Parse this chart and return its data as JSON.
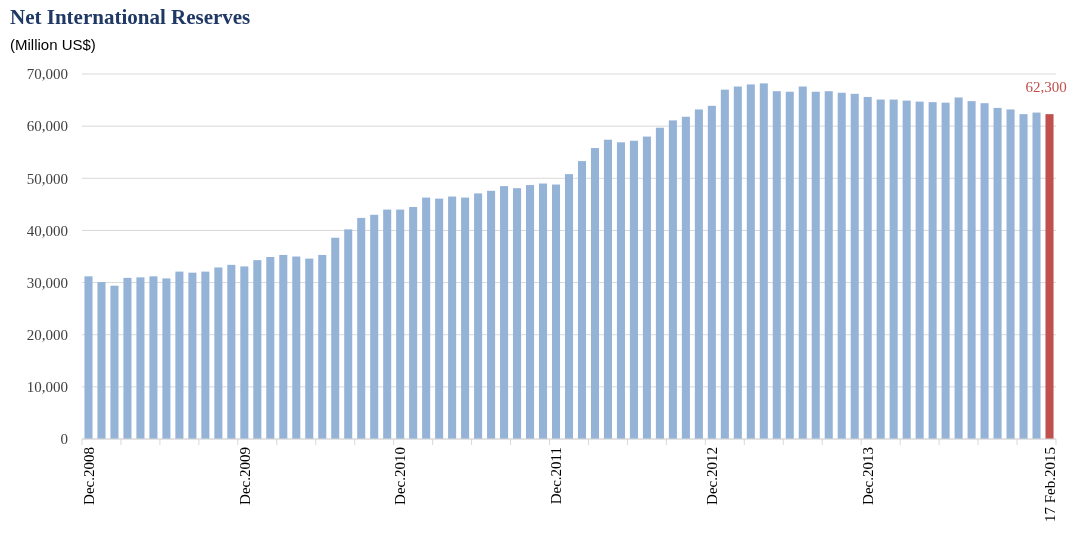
{
  "chart_data": {
    "type": "bar",
    "title": "Net International Reserves",
    "subtitle": "(Million US$)",
    "categories": [
      "Dec.2008",
      null,
      null,
      null,
      null,
      null,
      null,
      null,
      null,
      null,
      null,
      null,
      "Dec.2009",
      null,
      null,
      null,
      null,
      null,
      null,
      null,
      null,
      null,
      null,
      null,
      "Dec.2010",
      null,
      null,
      null,
      null,
      null,
      null,
      null,
      null,
      null,
      null,
      null,
      "Dec.2011",
      null,
      null,
      null,
      null,
      null,
      null,
      null,
      null,
      null,
      null,
      null,
      "Dec.2012",
      null,
      null,
      null,
      null,
      null,
      null,
      null,
      null,
      null,
      null,
      null,
      "Dec.2013",
      null,
      null,
      null,
      null,
      null,
      null,
      null,
      null,
      null,
      null,
      null,
      null,
      null,
      "17 Feb.2015"
    ],
    "values": [
      31200,
      30100,
      29400,
      30900,
      31000,
      31200,
      30800,
      32100,
      31900,
      32100,
      32900,
      33400,
      33100,
      34300,
      34900,
      35300,
      35000,
      34600,
      35300,
      38600,
      40200,
      42400,
      43000,
      44000,
      44000,
      44500,
      46300,
      46100,
      46500,
      46300,
      47100,
      47600,
      48500,
      48100,
      48700,
      49000,
      48800,
      50800,
      53300,
      55800,
      57400,
      56900,
      57200,
      58000,
      59700,
      61100,
      61800,
      63200,
      63900,
      67000,
      67600,
      68000,
      68200,
      66700,
      66600,
      67600,
      66600,
      66700,
      66400,
      66200,
      65600,
      65100,
      65100,
      64900,
      64700,
      64600,
      64500,
      65500,
      64800,
      64400,
      63500,
      63200,
      62300,
      62600,
      62300
    ],
    "colors": [
      "#95b3d7",
      "#95b3d7",
      "#95b3d7",
      "#95b3d7",
      "#95b3d7",
      "#95b3d7",
      "#95b3d7",
      "#95b3d7",
      "#95b3d7",
      "#95b3d7",
      "#95b3d7",
      "#95b3d7",
      "#95b3d7",
      "#95b3d7",
      "#95b3d7",
      "#95b3d7",
      "#95b3d7",
      "#95b3d7",
      "#95b3d7",
      "#95b3d7",
      "#95b3d7",
      "#95b3d7",
      "#95b3d7",
      "#95b3d7",
      "#95b3d7",
      "#95b3d7",
      "#95b3d7",
      "#95b3d7",
      "#95b3d7",
      "#95b3d7",
      "#95b3d7",
      "#95b3d7",
      "#95b3d7",
      "#95b3d7",
      "#95b3d7",
      "#95b3d7",
      "#95b3d7",
      "#95b3d7",
      "#95b3d7",
      "#95b3d7",
      "#95b3d7",
      "#95b3d7",
      "#95b3d7",
      "#95b3d7",
      "#95b3d7",
      "#95b3d7",
      "#95b3d7",
      "#95b3d7",
      "#95b3d7",
      "#95b3d7",
      "#95b3d7",
      "#95b3d7",
      "#95b3d7",
      "#95b3d7",
      "#95b3d7",
      "#95b3d7",
      "#95b3d7",
      "#95b3d7",
      "#95b3d7",
      "#95b3d7",
      "#95b3d7",
      "#95b3d7",
      "#95b3d7",
      "#95b3d7",
      "#95b3d7",
      "#95b3d7",
      "#95b3d7",
      "#95b3d7",
      "#95b3d7",
      "#95b3d7",
      "#95b3d7",
      "#95b3d7",
      "#95b3d7",
      "#95b3d7",
      "#c0504d"
    ],
    "value_labels": [
      null,
      null,
      null,
      null,
      null,
      null,
      null,
      null,
      null,
      null,
      null,
      null,
      null,
      null,
      null,
      null,
      null,
      null,
      null,
      null,
      null,
      null,
      null,
      null,
      null,
      null,
      null,
      null,
      null,
      null,
      null,
      null,
      null,
      null,
      null,
      null,
      null,
      null,
      null,
      null,
      null,
      null,
      null,
      null,
      null,
      null,
      null,
      null,
      null,
      null,
      null,
      null,
      null,
      null,
      null,
      null,
      null,
      null,
      null,
      null,
      null,
      null,
      null,
      null,
      null,
      null,
      null,
      null,
      null,
      null,
      null,
      null,
      null,
      null,
      "62,300"
    ],
    "ylim": [
      0,
      70000
    ],
    "yticks": [
      {
        "value": 0,
        "label": "0"
      },
      {
        "value": 10000,
        "label": "10,000"
      },
      {
        "value": 20000,
        "label": "20,000"
      },
      {
        "value": 30000,
        "label": "30,000"
      },
      {
        "value": 40000,
        "label": "40,000"
      },
      {
        "value": 50000,
        "label": "50,000"
      },
      {
        "value": 60000,
        "label": "60,000"
      },
      {
        "value": 70000,
        "label": "70,000"
      }
    ],
    "grid": "y"
  }
}
